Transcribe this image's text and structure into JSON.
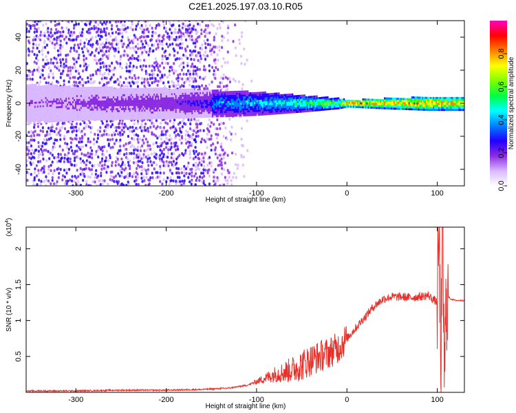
{
  "title": "C2E1.2025.197.03.10.R05",
  "chart_data": [
    {
      "type": "heatmap",
      "name": "spectrogram",
      "xlabel": "Height of straight line (km)",
      "ylabel": "Frequency (Hz)",
      "xlim": [
        -355,
        130
      ],
      "ylim": [
        -50,
        50
      ],
      "xticks": [
        -300,
        -200,
        -100,
        0,
        100
      ],
      "yticks": [
        -40,
        -20,
        0,
        20,
        40
      ],
      "colorbar": {
        "label": "Normalized spectral amplitude",
        "range": [
          0,
          1
        ],
        "ticks": [
          0.0,
          0.2,
          0.4,
          0.6,
          0.8
        ],
        "colormap": [
          "#ffffff",
          "#d9b8ff",
          "#8a2be2",
          "#2000ff",
          "#0080ff",
          "#00ffff",
          "#00ff40",
          "#80ff00",
          "#ffff00",
          "#ff8000",
          "#ff0000",
          "#ff00c0"
        ]
      },
      "profile": {
        "noise_fill_start_km": -165,
        "band_heights_km": [
          -355,
          -300,
          -200,
          -150,
          -100,
          -50,
          -10,
          0,
          40,
          90,
          130
        ],
        "band_halfwidth_hz": [
          12,
          10,
          9,
          8,
          7,
          5,
          3,
          2,
          3,
          4,
          4
        ],
        "band_peak_amplitude": [
          0.2,
          0.25,
          0.3,
          0.4,
          0.45,
          0.55,
          0.7,
          0.9,
          0.85,
          0.9,
          0.8
        ]
      }
    },
    {
      "type": "line",
      "name": "snr",
      "xlabel": "Height of straight line (km)",
      "ylabel": "SNR (10 * v/v)",
      "y_multiplier": "(x10",
      "y_multiplier_exp": "4",
      "y_multiplier_close": ")",
      "xlim": [
        -355,
        130
      ],
      "ylim": [
        0,
        2.3
      ],
      "xticks": [
        -300,
        -200,
        -100,
        0,
        100
      ],
      "yticks": [
        0.5,
        1.0,
        1.5,
        2.0
      ],
      "color": "#e8302a",
      "series": [
        {
          "x": [
            -355,
            -300,
            -250,
            -200,
            -160,
            -130,
            -110,
            -100,
            -90,
            -80,
            -70,
            -60,
            -50,
            -40,
            -30,
            -20,
            -10,
            0,
            10,
            20,
            30,
            40,
            50,
            60,
            70,
            80,
            90,
            95,
            100,
            102,
            104,
            106,
            108,
            110,
            115,
            120,
            130
          ],
          "values": [
            0.02,
            0.02,
            0.03,
            0.03,
            0.04,
            0.06,
            0.1,
            0.15,
            0.2,
            0.25,
            0.28,
            0.32,
            0.38,
            0.45,
            0.5,
            0.55,
            0.62,
            0.75,
            0.9,
            1.05,
            1.2,
            1.3,
            1.33,
            1.33,
            1.32,
            1.33,
            1.35,
            1.3,
            1.25,
            2.2,
            0.3,
            2.2,
            0.1,
            1.35,
            1.3,
            1.28,
            1.28
          ]
        }
      ]
    }
  ]
}
